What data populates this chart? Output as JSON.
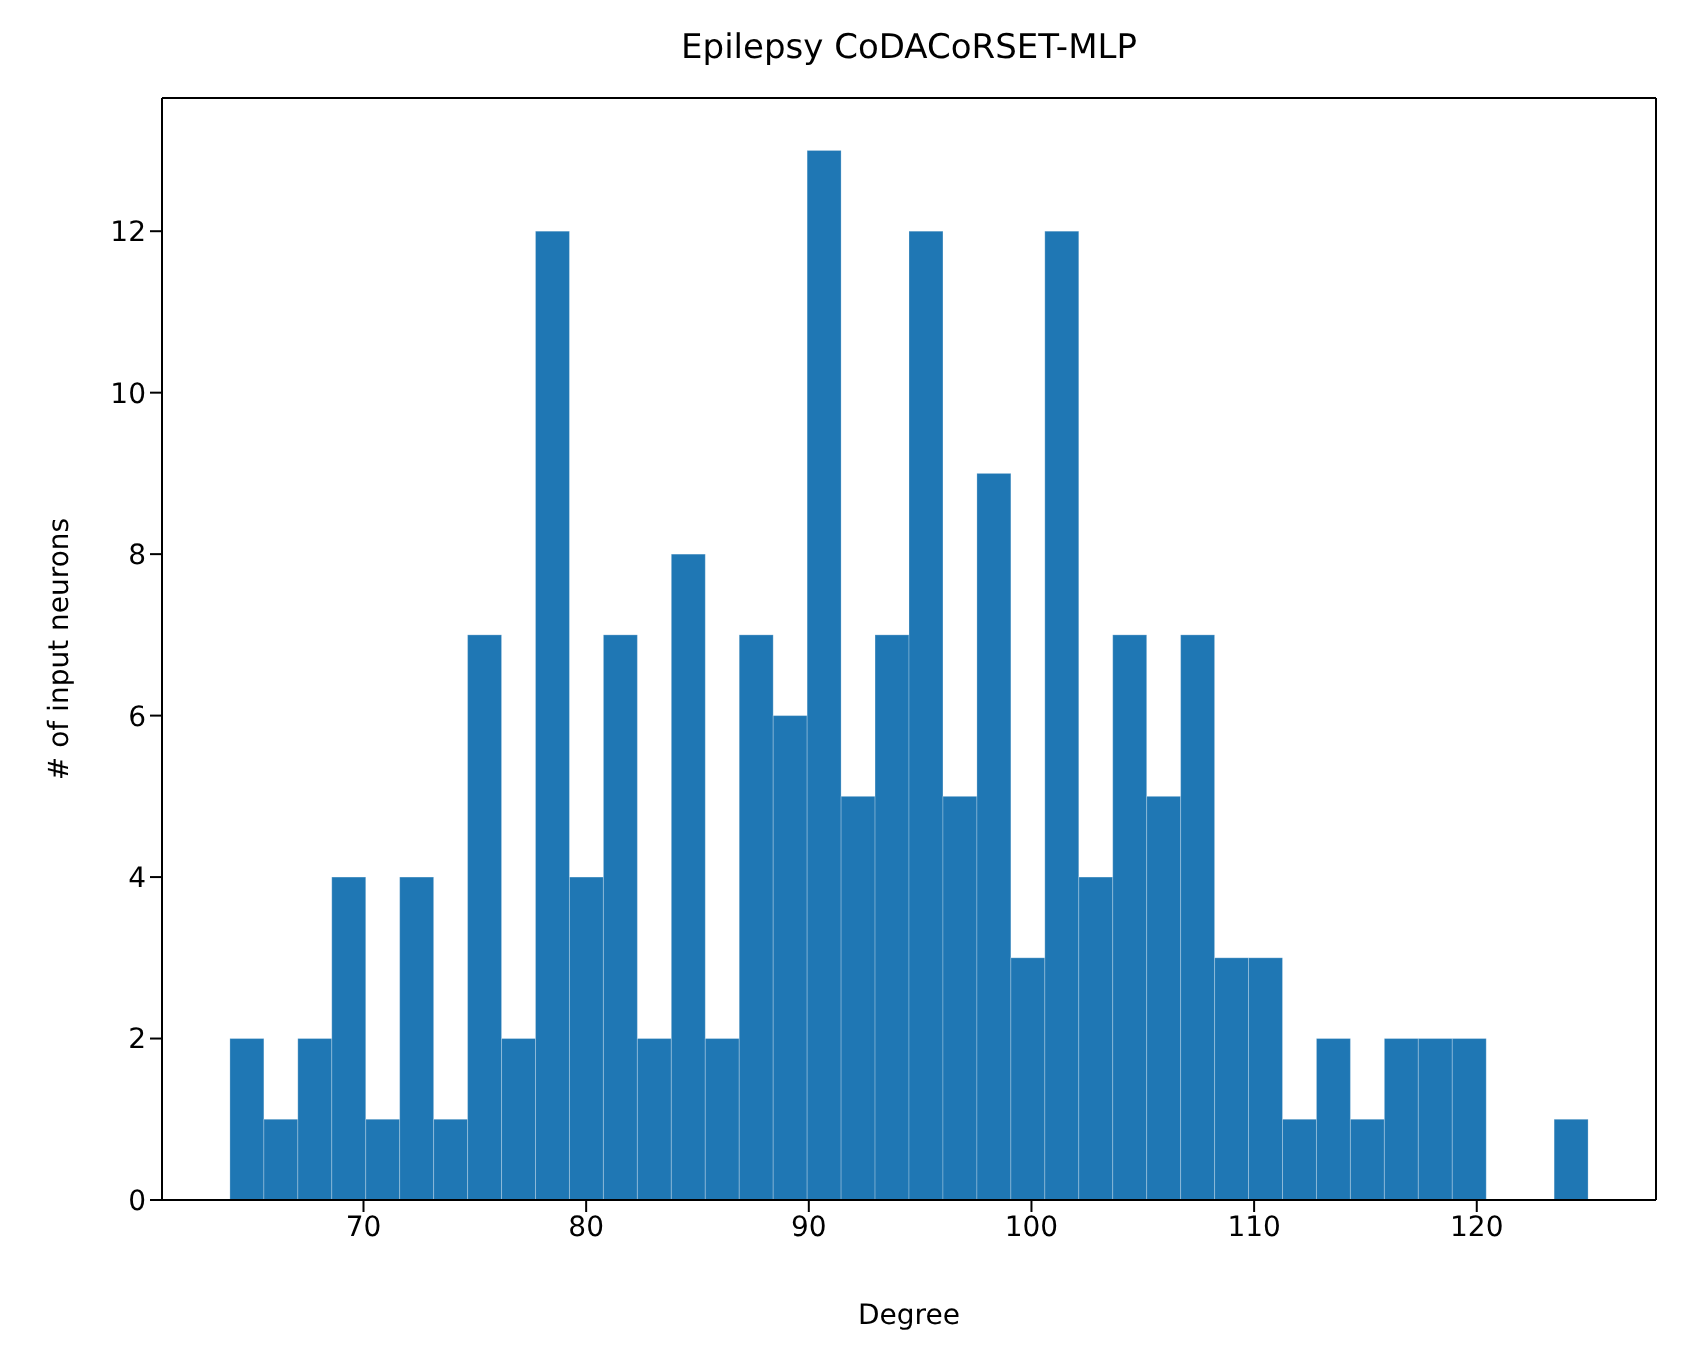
{
  "chart_data": {
    "type": "histogram",
    "title": "Epilepsy CoDACoRSET-MLP",
    "xlabel": "Degree",
    "ylabel": "# of input neurons",
    "color": "#1f77b4",
    "bins": [
      64,
      65.525,
      67.05,
      68.575,
      70.1,
      71.625,
      73.15,
      74.675,
      76.2,
      77.725,
      79.25,
      80.775,
      82.3,
      83.825,
      85.35,
      86.875,
      88.4,
      89.925,
      91.45,
      92.975,
      94.5,
      96.025,
      97.55,
      99.075,
      100.6,
      102.125,
      103.65,
      105.175,
      106.7,
      108.225,
      109.75,
      111.275,
      112.8,
      114.325,
      115.85,
      117.375,
      118.9,
      120.425,
      121.95,
      123.475,
      125
    ],
    "values": [
      2,
      1,
      2,
      4,
      1,
      4,
      1,
      7,
      2,
      12,
      4,
      7,
      2,
      8,
      2,
      7,
      6,
      13,
      5,
      7,
      12,
      5,
      9,
      3,
      12,
      4,
      7,
      5,
      7,
      3,
      3,
      1,
      2,
      1,
      2,
      2,
      2,
      0,
      0,
      1
    ],
    "xlim": [
      60.95,
      128.05
    ],
    "xticks": [
      70,
      80,
      90,
      100,
      110,
      120
    ],
    "ylim": [
      0,
      13.65
    ],
    "yticks": [
      0,
      2,
      4,
      6,
      8,
      10,
      12
    ]
  }
}
